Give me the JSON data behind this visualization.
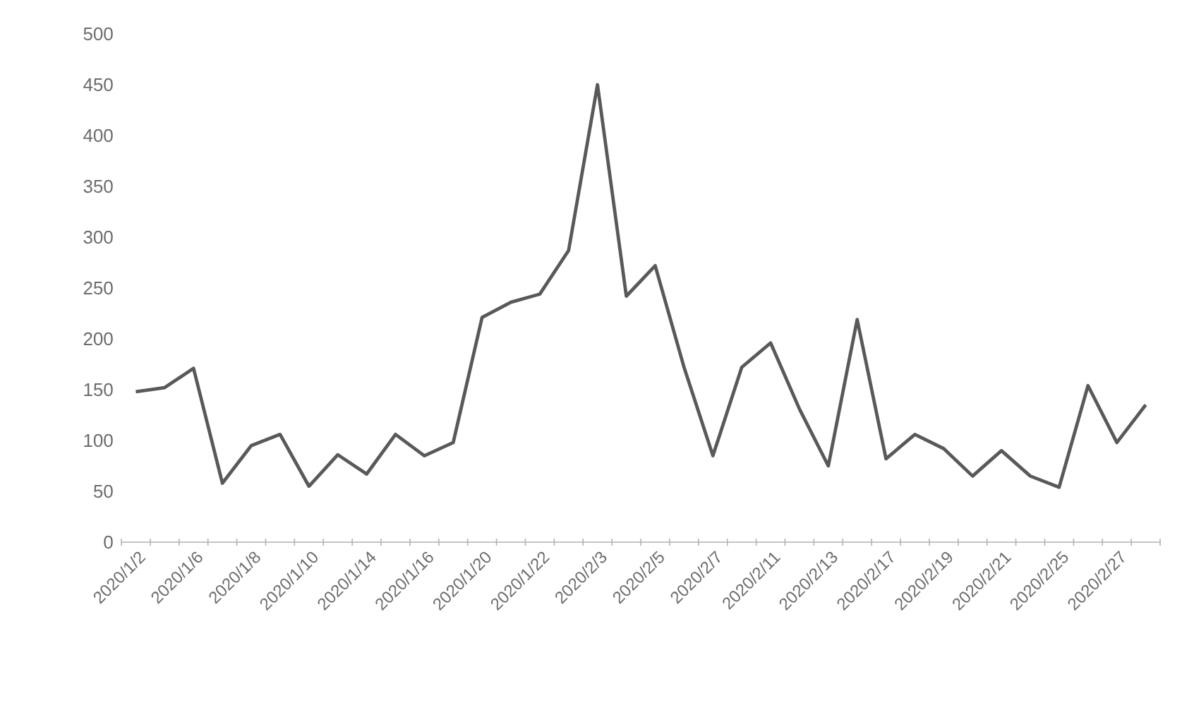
{
  "chart_data": {
    "type": "line",
    "categories": [
      "2020/1/2",
      null,
      "2020/1/6",
      null,
      "2020/1/8",
      null,
      "2020/1/10",
      null,
      "2020/1/14",
      null,
      "2020/1/16",
      null,
      "2020/1/20",
      null,
      "2020/1/22",
      null,
      "2020/2/3",
      null,
      "2020/2/5",
      null,
      "2020/2/7",
      null,
      "2020/2/11",
      null,
      "2020/2/13",
      null,
      "2020/2/17",
      null,
      "2020/2/19",
      null,
      "2020/2/21",
      null,
      "2020/2/25",
      null,
      "2020/2/27",
      null
    ],
    "series": [
      {
        "color": "#595959",
        "values": [
          148,
          152,
          171,
          58,
          95,
          106,
          55,
          86,
          67,
          106,
          85,
          98,
          221,
          236,
          244,
          287,
          450,
          242,
          272,
          172,
          85,
          172,
          196,
          131,
          75,
          219,
          82,
          106,
          92,
          65,
          90,
          65,
          54,
          154,
          98,
          135
        ]
      }
    ],
    "ylim": [
      0,
      500
    ],
    "yticks": [
      0,
      50,
      100,
      150,
      200,
      250,
      300,
      350,
      400,
      450,
      500
    ],
    "grid": false,
    "marker": "none",
    "line_style": "solid"
  }
}
